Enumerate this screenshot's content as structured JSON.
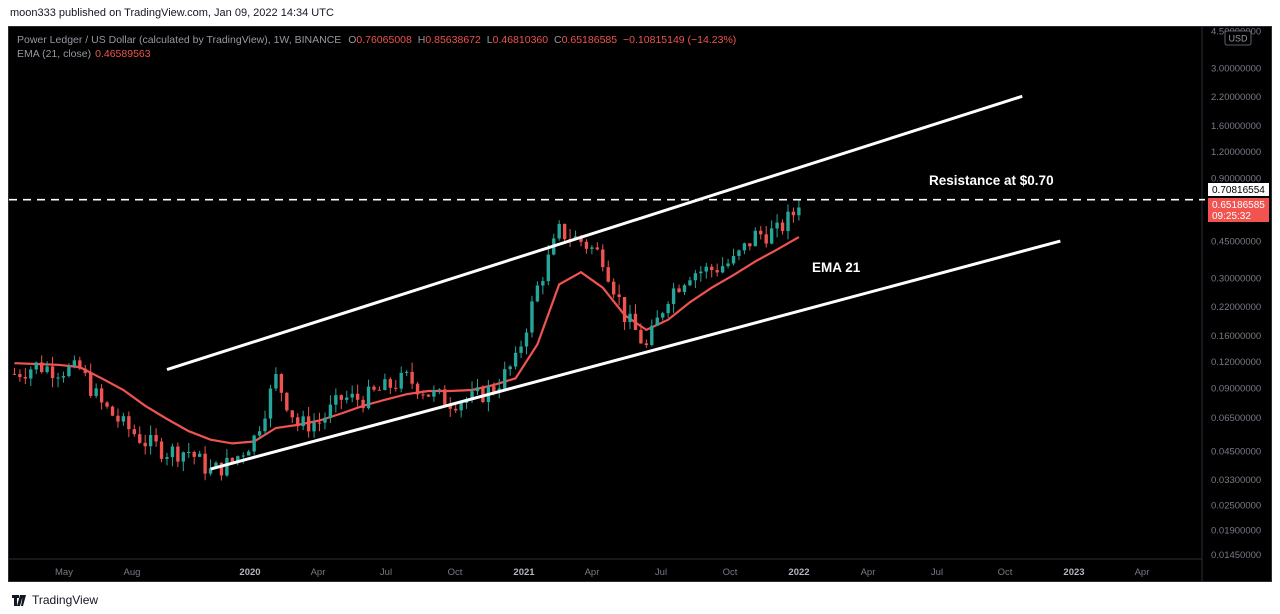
{
  "header": {
    "published": "moon333 published on TradingView.com, Jan 09, 2022 14:34 UTC"
  },
  "footer": {
    "brand": "TradingView",
    "brand_icon": "tradingview-logo-icon"
  },
  "legend": {
    "title": "Power Ledger / US Dollar (calculated by TradingView), 1W, BINANCE",
    "o_label": "O",
    "o": "0.76065008",
    "h_label": "H",
    "h": "0.85638672",
    "l_label": "L",
    "l": "0.46810360",
    "c_label": "C",
    "c": "0.65186585",
    "change": "−0.10815149 (−14.23%)",
    "ema_label": "EMA (21, close)",
    "ema_value": "0.46589563"
  },
  "price_axis": {
    "unit": "USD",
    "ticks": [
      "4.50000000",
      "3.00000000",
      "2.20000000",
      "1.60000000",
      "1.20000000",
      "0.90000000",
      "0.45000000",
      "0.30000000",
      "0.22000000",
      "0.16000000",
      "0.12000000",
      "0.09000000",
      "0.06500000",
      "0.04500000",
      "0.03300000",
      "0.02500000",
      "0.01900000",
      "0.01450000"
    ],
    "resistance_tag": "0.70816554",
    "price_tag": "0.65186585",
    "countdown": "09:25:32"
  },
  "time_axis": {
    "ticks": [
      "May",
      "Aug",
      "2020",
      "Apr",
      "Jul",
      "Oct",
      "2021",
      "Apr",
      "Jul",
      "Oct",
      "2022",
      "Apr",
      "Jul",
      "Oct",
      "2023",
      "Apr"
    ],
    "bold_ticks": [
      "2020",
      "2021",
      "2022",
      "2023"
    ]
  },
  "annotations": {
    "resistance": "Resistance at $0.70",
    "ema": "EMA 21"
  },
  "colors": {
    "up": "#26a69a",
    "down": "#ef5350",
    "ema": "#f05350",
    "background": "#000000",
    "lines": "#ffffff",
    "axis_text": "#787b86"
  },
  "chart_data": {
    "type": "candlestick",
    "title": "Power Ledger / US Dollar (calculated by TradingView), 1W, BINANCE",
    "scale": "log",
    "ylim": [
      0.0138,
      4.7
    ],
    "x_range": [
      "2019-03-25",
      "2023-06-05"
    ],
    "x": [
      "2019-04-01",
      "2019-04-29",
      "2019-05-27",
      "2019-06-24",
      "2019-07-22",
      "2019-08-19",
      "2019-09-16",
      "2019-10-14",
      "2019-11-11",
      "2019-12-09",
      "2020-01-06",
      "2020-02-03",
      "2020-03-02",
      "2020-03-30",
      "2020-04-27",
      "2020-05-25",
      "2020-06-22",
      "2020-07-20",
      "2020-08-17",
      "2020-09-14",
      "2020-10-12",
      "2020-11-09",
      "2020-12-07",
      "2021-01-04",
      "2021-02-01",
      "2021-03-01",
      "2021-03-29",
      "2021-04-26",
      "2021-05-24",
      "2021-06-21",
      "2021-07-19",
      "2021-08-16",
      "2021-09-13",
      "2021-10-11",
      "2021-11-08",
      "2021-12-06",
      "2022-01-03"
    ],
    "close": [
      0.105,
      0.115,
      0.11,
      0.11,
      0.075,
      0.06,
      0.05,
      0.045,
      0.045,
      0.036,
      0.04,
      0.052,
      0.1,
      0.06,
      0.062,
      0.08,
      0.08,
      0.09,
      0.1,
      0.085,
      0.078,
      0.08,
      0.09,
      0.12,
      0.27,
      0.5,
      0.45,
      0.38,
      0.2,
      0.14,
      0.25,
      0.32,
      0.33,
      0.36,
      0.48,
      0.5,
      0.65
    ],
    "ema21": [
      0.118,
      0.117,
      0.116,
      0.113,
      0.1,
      0.088,
      0.074,
      0.064,
      0.056,
      0.051,
      0.049,
      0.05,
      0.058,
      0.06,
      0.063,
      0.068,
      0.074,
      0.079,
      0.084,
      0.087,
      0.087,
      0.088,
      0.093,
      0.1,
      0.145,
      0.28,
      0.32,
      0.27,
      0.2,
      0.17,
      0.19,
      0.23,
      0.27,
      0.31,
      0.36,
      0.41,
      0.47
    ],
    "series": [
      {
        "name": "EMA (21, close)",
        "values": [
          0.118,
          0.117,
          0.116,
          0.113,
          0.1,
          0.088,
          0.074,
          0.064,
          0.056,
          0.051,
          0.049,
          0.05,
          0.058,
          0.06,
          0.063,
          0.068,
          0.074,
          0.079,
          0.084,
          0.087,
          0.087,
          0.088,
          0.093,
          0.1,
          0.145,
          0.28,
          0.32,
          0.27,
          0.2,
          0.17,
          0.19,
          0.23,
          0.27,
          0.31,
          0.36,
          0.41,
          0.47
        ]
      }
    ],
    "resistance_level": 0.70816554,
    "channel_upper": [
      {
        "x": "2019-10-14",
        "y": 0.11
      },
      {
        "x": "2022-10-17",
        "y": 2.2
      }
    ],
    "channel_lower": [
      {
        "x": "2019-12-09",
        "y": 0.037
      },
      {
        "x": "2022-12-05",
        "y": 0.45
      }
    ]
  }
}
